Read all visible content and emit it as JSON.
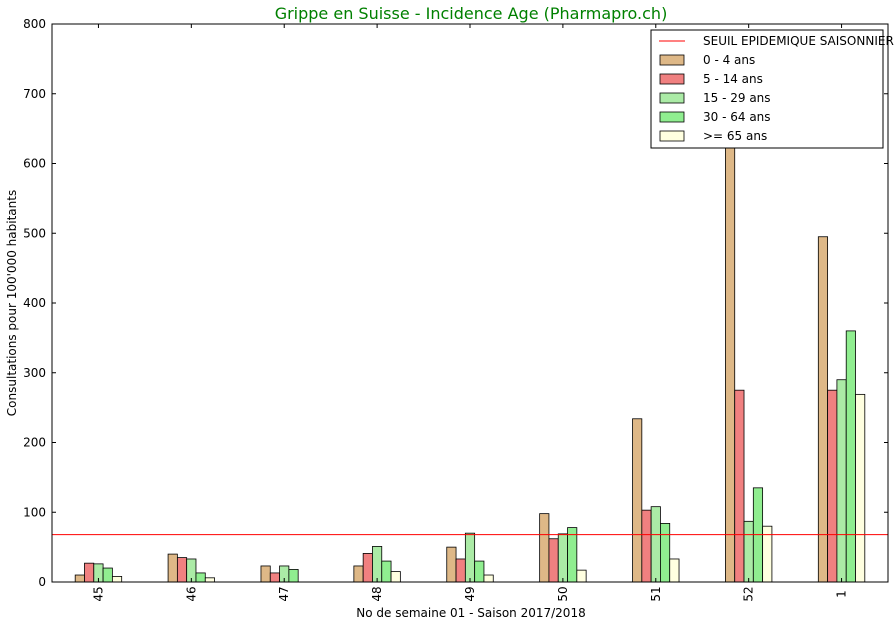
{
  "chart_data": {
    "type": "bar",
    "title": "Grippe en Suisse - Incidence Age (Pharmapro.ch)",
    "xlabel": "No de semaine 01 - Saison 2017/2018",
    "ylabel": "Consultations pour 100'000 habitants",
    "ylim": [
      0,
      800
    ],
    "yticks": [
      "0",
      "100",
      "200",
      "300",
      "400",
      "500",
      "600",
      "700",
      "800"
    ],
    "categories": [
      "45",
      "46",
      "47",
      "48",
      "49",
      "50",
      "51",
      "52",
      "1"
    ],
    "threshold": {
      "name": "SEUIL EPIDEMIQUE SAISONNIER",
      "value": 68,
      "color": "#ff0000"
    },
    "series": [
      {
        "name": "0 - 4 ans",
        "color": "#deb887",
        "values": [
          10,
          40,
          23,
          23,
          50,
          98,
          234,
          628,
          495
        ]
      },
      {
        "name": "5 - 14 ans",
        "color": "#f08080",
        "values": [
          27,
          35,
          13,
          41,
          33,
          62,
          103,
          275,
          275
        ]
      },
      {
        "name": "15 - 29 ans",
        "color": "#abeba6",
        "values": [
          26,
          33,
          23,
          51,
          70,
          69,
          108,
          87,
          290
        ]
      },
      {
        "name": "30 - 64 ans",
        "color": "#90ee90",
        "values": [
          20,
          13,
          18,
          30,
          30,
          78,
          84,
          135,
          360
        ]
      },
      {
        "name": ">= 65 ans",
        "color": "#ffffe0",
        "values": [
          8,
          6,
          0,
          15,
          10,
          17,
          33,
          80,
          269
        ]
      }
    ],
    "legend_position": "top-right",
    "grid": false
  }
}
